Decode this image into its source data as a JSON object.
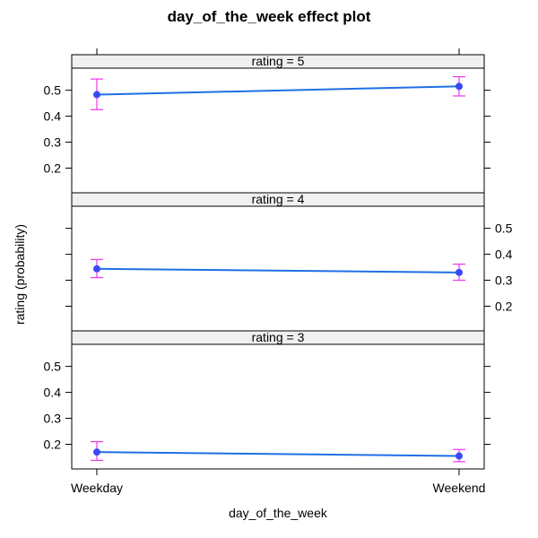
{
  "chart_data": {
    "type": "line",
    "title": "day_of_the_week effect plot",
    "xlabel": "day_of_the_week",
    "ylabel": "rating (probability)",
    "categories": [
      "Weekday",
      "Weekend"
    ],
    "ylim": [
      0.105,
      0.585
    ],
    "yticks": [
      0.2,
      0.3,
      0.4,
      0.5
    ],
    "ytick_labels": [
      "0.2",
      "0.3",
      "0.4",
      "0.5"
    ],
    "colors": {
      "line": "#1f6fe5",
      "point": "#3b49f5",
      "errorbar": "#f034f0",
      "strip": "#f0f0f0",
      "frame": "#000000"
    },
    "panels": [
      {
        "label": "rating = 5",
        "values": [
          0.483,
          0.515
        ],
        "lower": [
          0.425,
          0.478
        ],
        "upper": [
          0.543,
          0.552
        ],
        "yaxis_side": "left"
      },
      {
        "label": "rating = 4",
        "values": [
          0.344,
          0.33
        ],
        "lower": [
          0.31,
          0.3
        ],
        "upper": [
          0.38,
          0.362
        ],
        "yaxis_side": "right"
      },
      {
        "label": "rating = 3",
        "values": [
          0.17,
          0.155
        ],
        "lower": [
          0.138,
          0.133
        ],
        "upper": [
          0.21,
          0.18
        ],
        "yaxis_side": "left"
      }
    ]
  }
}
